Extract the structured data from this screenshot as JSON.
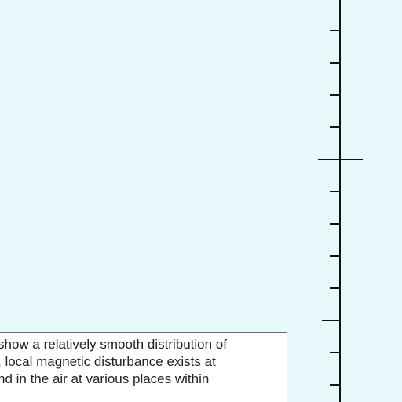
{
  "colors": {
    "background": "#e8f9fc",
    "axis": "#111111",
    "box_border": "#6b6b6b",
    "box_fill": "#ffffff",
    "text": "#222222"
  },
  "caption": {
    "lines": [
      "show a relatively smooth distribution of",
      ", local magnetic disturbance exists at",
      "nd in the air at various places within"
    ]
  }
}
